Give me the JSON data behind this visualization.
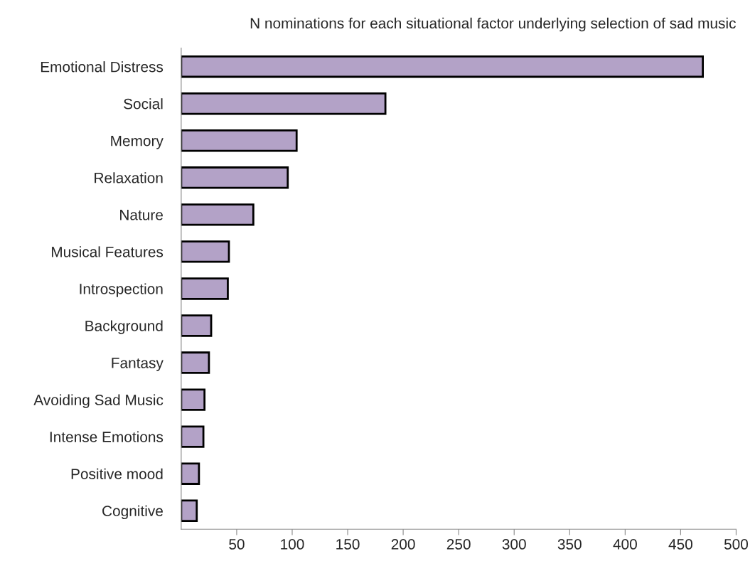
{
  "chart_data": {
    "type": "bar",
    "orientation": "horizontal",
    "title": "N nominations for each situational factor underlying selection of sad music",
    "categories": [
      "Emotional Distress",
      "Social",
      "Memory",
      "Relaxation",
      "Nature",
      "Musical Features",
      "Introspection",
      "Background",
      "Fantasy",
      "Avoiding Sad Music",
      "Intense Emotions",
      "Positive mood",
      "Cognitive"
    ],
    "values": [
      470,
      184,
      104,
      96,
      65,
      43,
      42,
      27,
      25,
      21,
      20,
      16,
      14
    ],
    "color": "#b3a2c7",
    "xlim": [
      0,
      500
    ],
    "xticks": [
      50,
      100,
      150,
      200,
      250,
      300,
      350,
      400,
      450,
      500
    ],
    "grid": false
  }
}
